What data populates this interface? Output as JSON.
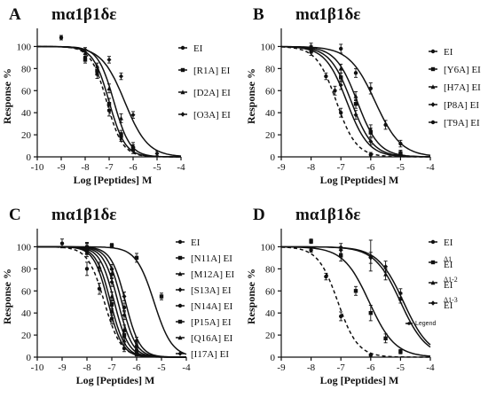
{
  "figure": {
    "panels": [
      {
        "letter": "A",
        "title": "mα1β1δε"
      },
      {
        "letter": "B",
        "title": "mα1β1δε"
      },
      {
        "letter": "C",
        "title": "mα1β1δε"
      },
      {
        "letter": "D",
        "title": "mα1β1δε"
      }
    ]
  },
  "chart_data": [
    {
      "type": "line",
      "panel": "A",
      "title": "mα1β1δε",
      "xlabel": "Log [Peptides] M",
      "ylabel": "Response %",
      "xlim": [
        -10,
        -4
      ],
      "ylim": [
        0,
        110
      ],
      "xticks": [
        -10,
        -9,
        -8,
        -7,
        -6,
        -5,
        -4
      ],
      "yticks": [
        0,
        20,
        40,
        60,
        80,
        100
      ],
      "legend_position": "right",
      "series": [
        {
          "name": "EI",
          "style": "dashed",
          "marker": "circle",
          "logIC50": -7.1,
          "hill": 1.3,
          "points": [
            {
              "x": -9,
              "y": 108,
              "err": 2
            },
            {
              "x": -8,
              "y": 90,
              "err": 3
            },
            {
              "x": -7.5,
              "y": 75,
              "err": 4
            },
            {
              "x": -7,
              "y": 42,
              "err": 5
            },
            {
              "x": -6.5,
              "y": 18,
              "err": 4
            },
            {
              "x": -6,
              "y": 6,
              "err": 3
            }
          ]
        },
        {
          "name": "[R1A] EI",
          "style": "solid",
          "marker": "square",
          "logIC50": -7.0,
          "hill": 1.3,
          "points": [
            {
              "x": -8,
              "y": 88,
              "err": 3
            },
            {
              "x": -7.5,
              "y": 78,
              "err": 4
            },
            {
              "x": -7,
              "y": 48,
              "err": 5
            },
            {
              "x": -6.5,
              "y": 20,
              "err": 4
            },
            {
              "x": -6,
              "y": 8,
              "err": 3
            }
          ]
        },
        {
          "name": "[D2A] EI",
          "style": "solid",
          "marker": "triangle",
          "logIC50": -6.8,
          "hill": 1.3,
          "points": [
            {
              "x": -8,
              "y": 94,
              "err": 3
            },
            {
              "x": -7.5,
              "y": 82,
              "err": 3
            },
            {
              "x": -7,
              "y": 62,
              "err": 4
            },
            {
              "x": -6.5,
              "y": 35,
              "err": 4
            },
            {
              "x": -6,
              "y": 10,
              "err": 3
            }
          ]
        },
        {
          "name": "[O3A] EI",
          "style": "solid",
          "marker": "diamond",
          "logIC50": -6.35,
          "hill": 0.9,
          "points": [
            {
              "x": -8,
              "y": 97,
              "err": 2
            },
            {
              "x": -7,
              "y": 88,
              "err": 3
            },
            {
              "x": -6.5,
              "y": 73,
              "err": 3
            },
            {
              "x": -6,
              "y": 38,
              "err": 3
            },
            {
              "x": -5,
              "y": 3,
              "err": 2
            }
          ]
        }
      ]
    },
    {
      "type": "line",
      "panel": "B",
      "title": "mα1β1δε",
      "xlabel": "Log [Peptides] M",
      "ylabel": "Response %",
      "xlim": [
        -9,
        -4
      ],
      "ylim": [
        0,
        110
      ],
      "xticks": [
        -9,
        -8,
        -7,
        -6,
        -5,
        -4
      ],
      "yticks": [
        0,
        20,
        40,
        60,
        80,
        100
      ],
      "legend_position": "right",
      "series": [
        {
          "name": "EI",
          "style": "dashed",
          "marker": "circle",
          "logIC50": -7.15,
          "hill": 1.3,
          "points": [
            {
              "x": -8,
              "y": 95,
              "err": 3
            },
            {
              "x": -7.5,
              "y": 73,
              "err": 3
            },
            {
              "x": -7.2,
              "y": 60,
              "err": 4
            },
            {
              "x": -7,
              "y": 40,
              "err": 4
            },
            {
              "x": -6,
              "y": 2,
              "err": 2
            }
          ]
        },
        {
          "name": "[Y6A] EI",
          "style": "solid",
          "marker": "square",
          "logIC50": -6.65,
          "hill": 1.2,
          "points": [
            {
              "x": -8,
              "y": 98,
              "err": 3
            },
            {
              "x": -7,
              "y": 72,
              "err": 4
            },
            {
              "x": -6.5,
              "y": 48,
              "err": 4
            },
            {
              "x": -6,
              "y": 22,
              "err": 4
            },
            {
              "x": -5,
              "y": 3,
              "err": 2
            }
          ]
        },
        {
          "name": "[H7A] EI",
          "style": "solid",
          "marker": "triangle",
          "logIC50": -6.45,
          "hill": 1.2,
          "points": [
            {
              "x": -8,
              "y": 100,
              "err": 3
            },
            {
              "x": -7,
              "y": 80,
              "err": 4
            },
            {
              "x": -6.5,
              "y": 55,
              "err": 4
            },
            {
              "x": -6,
              "y": 25,
              "err": 4
            },
            {
              "x": -5,
              "y": 4,
              "err": 2
            }
          ]
        },
        {
          "name": "[P8A] EI",
          "style": "solid",
          "marker": "diamond",
          "logIC50": -6.8,
          "hill": 1.2,
          "points": [
            {
              "x": -8,
              "y": 97,
              "err": 3
            },
            {
              "x": -7,
              "y": 65,
              "err": 4
            },
            {
              "x": -6.5,
              "y": 38,
              "err": 4
            },
            {
              "x": -6,
              "y": 14,
              "err": 3
            }
          ]
        },
        {
          "name": "[T9A] EI",
          "style": "solid",
          "marker": "circle",
          "logIC50": -5.85,
          "hill": 1.0,
          "points": [
            {
              "x": -7,
              "y": 98,
              "err": 4
            },
            {
              "x": -6.5,
              "y": 76,
              "err": 4
            },
            {
              "x": -6,
              "y": 62,
              "err": 5
            },
            {
              "x": -5.5,
              "y": 29,
              "err": 4
            },
            {
              "x": -5,
              "y": 12,
              "err": 3
            }
          ]
        }
      ]
    },
    {
      "type": "line",
      "panel": "C",
      "title": "mα1β1δε",
      "xlabel": "Log [Peptides] M",
      "ylabel": "Response %",
      "xlim": [
        -10,
        -4
      ],
      "ylim": [
        0,
        110
      ],
      "xticks": [
        -10,
        -9,
        -8,
        -7,
        -6,
        -5,
        -4
      ],
      "yticks": [
        0,
        20,
        40,
        60,
        80,
        100
      ],
      "legend_position": "right",
      "series": [
        {
          "name": "EI",
          "style": "dashed",
          "marker": "circle",
          "logIC50": -7.3,
          "hill": 1.3,
          "points": [
            {
              "x": -9,
              "y": 103,
              "err": 4
            },
            {
              "x": -8,
              "y": 80,
              "err": 6
            },
            {
              "x": -7.5,
              "y": 62,
              "err": 5
            },
            {
              "x": -7,
              "y": 35,
              "err": 5
            },
            {
              "x": -6.5,
              "y": 8,
              "err": 3
            }
          ]
        },
        {
          "name": "[N11A] EI",
          "style": "solid",
          "marker": "square",
          "logIC50": -5.3,
          "hill": 1.2,
          "points": [
            {
              "x": -7,
              "y": 101,
              "err": 2
            },
            {
              "x": -6,
              "y": 90,
              "err": 4
            },
            {
              "x": -5,
              "y": 55,
              "err": 3
            }
          ]
        },
        {
          "name": "[M12A] EI",
          "style": "solid",
          "marker": "triangle",
          "logIC50": -6.9,
          "hill": 1.5,
          "points": [
            {
              "x": -8,
              "y": 98,
              "err": 5
            },
            {
              "x": -7.5,
              "y": 82,
              "err": 4
            },
            {
              "x": -7,
              "y": 55,
              "err": 4
            },
            {
              "x": -6.5,
              "y": 25,
              "err": 4
            },
            {
              "x": -6,
              "y": 4,
              "err": 2
            }
          ]
        },
        {
          "name": "[S13A] EI",
          "style": "solid",
          "marker": "diamond",
          "logIC50": -6.75,
          "hill": 1.5,
          "points": [
            {
              "x": -8,
              "y": 99,
              "err": 4
            },
            {
              "x": -7,
              "y": 68,
              "err": 4
            },
            {
              "x": -6.5,
              "y": 38,
              "err": 4
            },
            {
              "x": -6,
              "y": 6,
              "err": 2
            }
          ]
        },
        {
          "name": "[N14A] EI",
          "style": "solid",
          "marker": "circle",
          "logIC50": -6.6,
          "hill": 1.5,
          "points": [
            {
              "x": -8,
              "y": 100,
              "err": 4
            },
            {
              "x": -7,
              "y": 75,
              "err": 4
            },
            {
              "x": -6.5,
              "y": 45,
              "err": 4
            },
            {
              "x": -6,
              "y": 10,
              "err": 3
            }
          ]
        },
        {
          "name": "[P15A] EI",
          "style": "solid",
          "marker": "square",
          "logIC50": -7.05,
          "hill": 1.5,
          "points": [
            {
              "x": -8,
              "y": 97,
              "err": 4
            },
            {
              "x": -7,
              "y": 48,
              "err": 4
            },
            {
              "x": -6.5,
              "y": 20,
              "err": 3
            },
            {
              "x": -6,
              "y": 3,
              "err": 2
            }
          ]
        },
        {
          "name": "[Q16A] EI",
          "style": "solid",
          "marker": "triangle",
          "logIC50": -7.15,
          "hill": 1.5,
          "points": [
            {
              "x": -8,
              "y": 95,
              "err": 4
            },
            {
              "x": -7,
              "y": 42,
              "err": 4
            },
            {
              "x": -6.5,
              "y": 15,
              "err": 3
            }
          ]
        },
        {
          "name": "[I17A] EI",
          "style": "solid",
          "marker": "diamond",
          "logIC50": -6.45,
          "hill": 1.5,
          "points": [
            {
              "x": -8,
              "y": 100,
              "err": 3
            },
            {
              "x": -7,
              "y": 80,
              "err": 4
            },
            {
              "x": -6.5,
              "y": 55,
              "err": 4
            },
            {
              "x": -6,
              "y": 15,
              "err": 3
            }
          ]
        }
      ]
    },
    {
      "type": "line",
      "panel": "D",
      "title": "mα1β1δε",
      "xlabel": "Log [Peptides] M",
      "ylabel": "Response %",
      "xlim": [
        -9,
        -4
      ],
      "ylim": [
        0,
        110
      ],
      "xticks": [
        -9,
        -8,
        -7,
        -6,
        -5,
        -4
      ],
      "yticks": [
        0,
        20,
        40,
        60,
        80,
        100
      ],
      "legend_position": "right",
      "extra_label": "Legend",
      "series": [
        {
          "name": "EI",
          "style": "dashed",
          "marker": "circle",
          "logIC50": -7.1,
          "hill": 1.3,
          "points": [
            {
              "x": -8,
              "y": 97,
              "err": 2
            },
            {
              "x": -7.5,
              "y": 73,
              "err": 3
            },
            {
              "x": -7,
              "y": 37,
              "err": 4
            },
            {
              "x": -6,
              "y": 2,
              "err": 1
            }
          ]
        },
        {
          "name": "EI",
          "sup": "Δ1",
          "style": "solid",
          "marker": "square",
          "logIC50": -6.05,
          "hill": 1.0,
          "points": [
            {
              "x": -8,
              "y": 105,
              "err": 2
            },
            {
              "x": -7,
              "y": 92,
              "err": 5
            },
            {
              "x": -6.5,
              "y": 60,
              "err": 4
            },
            {
              "x": -6,
              "y": 40,
              "err": 7
            },
            {
              "x": -5.5,
              "y": 17,
              "err": 4
            },
            {
              "x": -5,
              "y": 5,
              "err": 2
            }
          ]
        },
        {
          "name": "EI",
          "sup": "Δ1-2",
          "style": "solid",
          "marker": "triangle",
          "logIC50": -5.0,
          "hill": 1.0,
          "points": [
            {
              "x": -7,
              "y": 100,
              "err": 3
            },
            {
              "x": -6,
              "y": 92,
              "err": 14
            },
            {
              "x": -5.5,
              "y": 75,
              "err": 5
            },
            {
              "x": -5,
              "y": 53,
              "err": 4
            }
          ]
        },
        {
          "name": "EI",
          "sup": "Δ1-3",
          "style": "solid",
          "marker": "diamond",
          "logIC50": -4.9,
          "hill": 1.0,
          "points": [
            {
              "x": -7,
              "y": 97,
              "err": 3
            },
            {
              "x": -6,
              "y": 90,
              "err": 5
            },
            {
              "x": -5.5,
              "y": 82,
              "err": 5
            },
            {
              "x": -5,
              "y": 58,
              "err": 4
            }
          ]
        }
      ]
    }
  ]
}
